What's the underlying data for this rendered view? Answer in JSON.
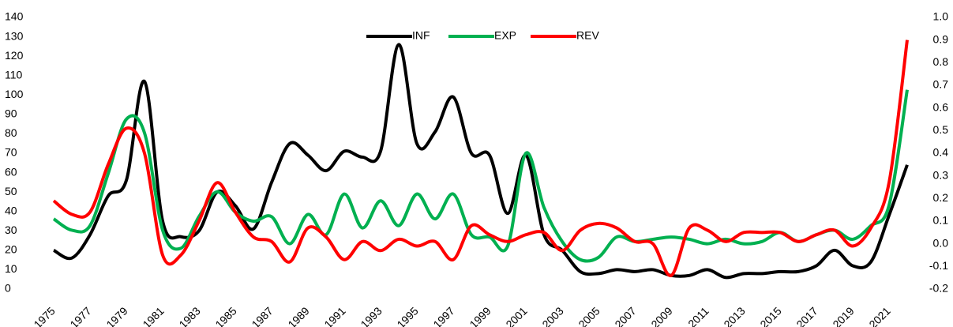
{
  "chart_data": {
    "type": "line",
    "categories": [
      "1975",
      null,
      "1977",
      null,
      "1979",
      null,
      "1981",
      null,
      "1983",
      null,
      "1985",
      null,
      "1987",
      null,
      "1989",
      null,
      "1991",
      null,
      "1993",
      null,
      "1995",
      null,
      "1997",
      null,
      "1999",
      null,
      "2001",
      null,
      "2003",
      null,
      "2005",
      null,
      "2007",
      null,
      "2009",
      null,
      "2011",
      null,
      "2013",
      null,
      "2015",
      null,
      "2017",
      null,
      "2019",
      null,
      "2021",
      null
    ],
    "series": [
      {
        "name": "INF",
        "color": "#000000",
        "values": [
          20,
          16,
          28,
          48,
          56,
          107,
          35,
          27,
          30,
          50,
          43,
          31,
          55,
          75,
          69,
          61,
          71,
          68,
          71,
          126,
          75,
          81,
          99,
          70,
          69,
          39,
          69,
          28,
          20,
          9,
          8,
          10,
          9,
          10,
          7,
          7,
          10,
          6,
          8,
          8,
          9,
          9,
          12,
          20,
          12,
          14,
          38,
          64
        ]
      },
      {
        "name": "EXP",
        "color": "#00b050",
        "axis": "y2",
        "values": [
          0.11,
          0.06,
          0.08,
          0.31,
          0.55,
          0.49,
          0.06,
          -0.02,
          0.12,
          0.23,
          0.14,
          0.1,
          0.12,
          0.0,
          0.13,
          0.04,
          0.22,
          0.07,
          0.19,
          0.08,
          0.22,
          0.11,
          0.22,
          0.04,
          0.03,
          -0.01,
          0.4,
          0.16,
          0.01,
          -0.07,
          -0.06,
          0.03,
          0.01,
          0.02,
          0.03,
          0.02,
          0.0,
          0.02,
          0.0,
          0.01,
          0.05,
          0.01,
          0.04,
          0.06,
          0.02,
          0.08,
          0.17,
          0.68
        ]
      },
      {
        "name": "REV",
        "color": "#ff0000",
        "axis": "y2",
        "values": [
          0.19,
          0.13,
          0.14,
          0.35,
          0.51,
          0.4,
          -0.05,
          -0.05,
          0.1,
          0.27,
          0.14,
          0.03,
          0.01,
          -0.08,
          0.07,
          0.03,
          -0.07,
          0.01,
          -0.03,
          0.02,
          -0.01,
          0.01,
          -0.07,
          0.08,
          0.04,
          0.01,
          0.04,
          0.05,
          -0.03,
          0.06,
          0.09,
          0.07,
          0.01,
          0.0,
          -0.14,
          0.07,
          0.06,
          0.01,
          0.05,
          0.05,
          0.05,
          0.01,
          0.04,
          0.06,
          -0.01,
          0.07,
          0.27,
          0.9
        ]
      }
    ],
    "ylim": [
      0,
      140
    ],
    "yticks": [
      0,
      10,
      20,
      30,
      40,
      50,
      60,
      70,
      80,
      90,
      100,
      110,
      120,
      130,
      140
    ],
    "y2lim": [
      -0.2,
      1.0
    ],
    "y2ticks": [
      -0.2,
      -0.1,
      {
        "value": 0,
        "label": "0.0"
      },
      0.1,
      0.2,
      0.3,
      0.4,
      0.5,
      0.6,
      0.7,
      0.8,
      0.9,
      {
        "value": 1,
        "label": "1.0"
      }
    ],
    "legend": "top"
  }
}
